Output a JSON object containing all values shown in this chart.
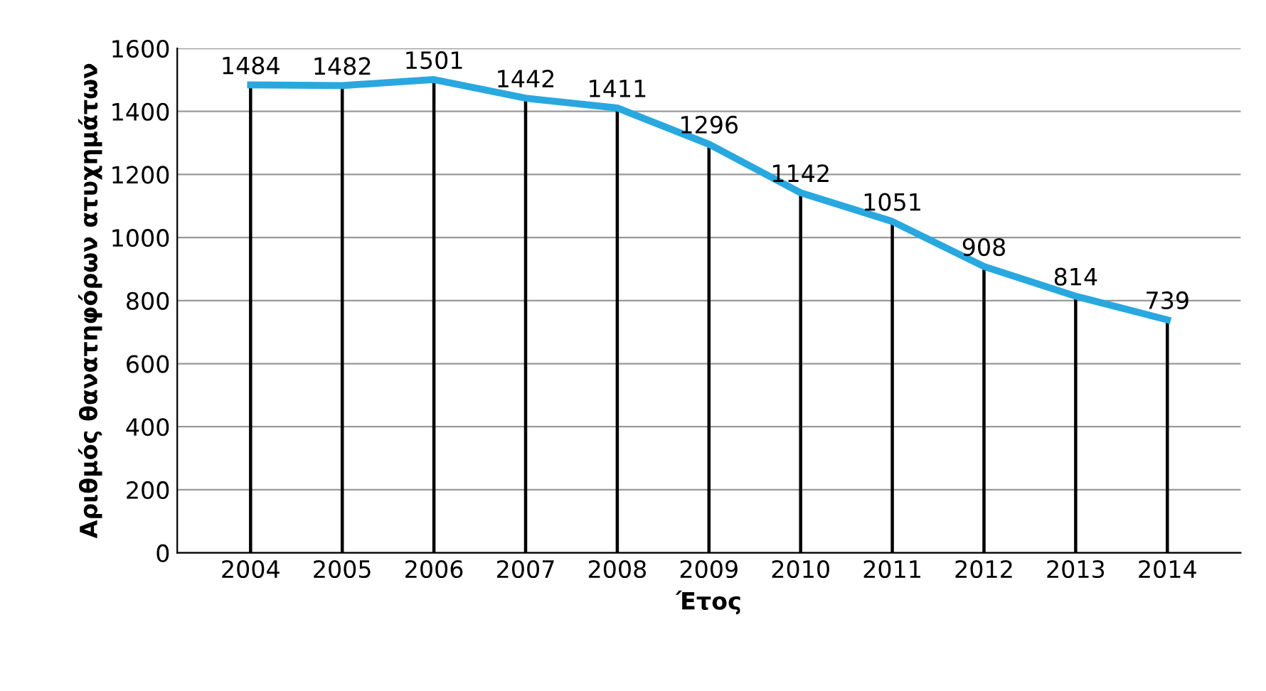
{
  "chart_data": {
    "type": "line",
    "xlabel": "Έτος",
    "ylabel": "Αριθμός θανατηφόρων ατυχημάτων",
    "categories": [
      "2004",
      "2005",
      "2006",
      "2007",
      "2008",
      "2009",
      "2010",
      "2011",
      "2012",
      "2013",
      "2014"
    ],
    "series": [
      {
        "type": "bar",
        "color": "#000000",
        "values": [
          1484,
          1482,
          1501,
          1442,
          1411,
          1296,
          1142,
          1051,
          908,
          814,
          739
        ]
      },
      {
        "color": "#29a8e0",
        "values": [
          1484,
          1482,
          1501,
          1442,
          1411,
          1296,
          1142,
          1051,
          908,
          814,
          739
        ],
        "value_labels": [
          "1484",
          "1482",
          "1501",
          "1442",
          "1411",
          "1296",
          "1142",
          "1051",
          "908",
          "814",
          "739"
        ]
      }
    ],
    "ylim": [
      0,
      1600
    ],
    "yticks": [
      0,
      200,
      400,
      600,
      800,
      1000,
      1200,
      1400,
      1600
    ],
    "grid": "y",
    "line_style": "solid"
  }
}
